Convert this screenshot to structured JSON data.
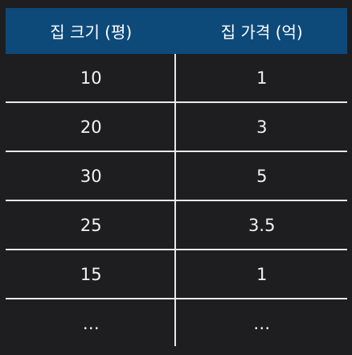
{
  "table": {
    "headers": [
      "집 크기 (평)",
      "집 가격 (억)"
    ],
    "rows": [
      [
        "10",
        "1"
      ],
      [
        "20",
        "3"
      ],
      [
        "30",
        "5"
      ],
      [
        "25",
        "3.5"
      ],
      [
        "15",
        "1"
      ],
      [
        "…",
        "…"
      ]
    ]
  },
  "colors": {
    "header_bg": "#0d4a7a",
    "page_bg": "#1e1e20",
    "grid_line": "#e8e8e8",
    "text": "#f2f2f2"
  }
}
